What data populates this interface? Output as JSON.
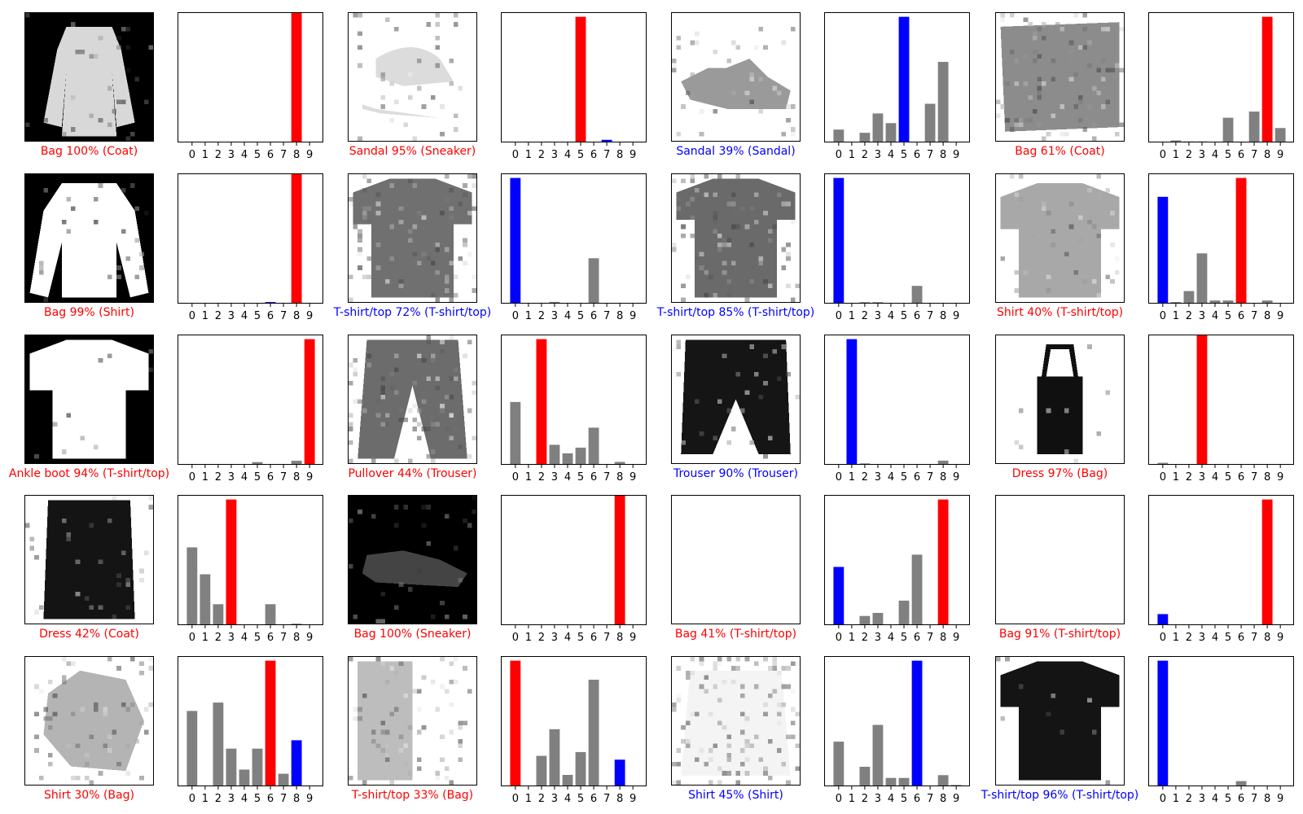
{
  "colors": {
    "predicted_wrong": "#ff0000",
    "true_label": "#0000ff",
    "other": "#808080",
    "correct_caption": "#0000ff",
    "wrong_caption": "#ff0000"
  },
  "chart_data": {
    "type": "bar",
    "categories": [
      "0",
      "1",
      "2",
      "3",
      "4",
      "5",
      "6",
      "7",
      "8",
      "9"
    ],
    "ylim": [
      0,
      1
    ],
    "grid": false,
    "panels": [
      {
        "image": "coat-image",
        "caption": "Bag 100% (Coat)",
        "correct": false,
        "predicted": 8,
        "true": 4,
        "values": [
          0,
          0,
          0,
          0,
          0,
          0,
          0,
          0,
          1.0,
          0
        ]
      },
      {
        "image": "sneaker-image",
        "caption": "Sandal 95% (Sneaker)",
        "correct": false,
        "predicted": 5,
        "true": 7,
        "values": [
          0.005,
          0,
          0.003,
          0,
          0,
          0.955,
          0,
          0.02,
          0,
          0
        ]
      },
      {
        "image": "sandal-image",
        "caption": "Sandal 39% (Sandal)",
        "correct": true,
        "predicted": 5,
        "true": 5,
        "values": [
          0.04,
          0,
          0.03,
          0.09,
          0.06,
          0.39,
          0,
          0.12,
          0.25,
          0
        ]
      },
      {
        "image": "coat-texture-image",
        "caption": "Bag 61% (Coat)",
        "correct": false,
        "predicted": 8,
        "true": 4,
        "values": [
          0,
          0.01,
          0.005,
          0.005,
          0,
          0.12,
          0,
          0.15,
          0.61,
          0.07
        ]
      },
      {
        "image": "shirt-image",
        "caption": "Bag 99% (Shirt)",
        "correct": false,
        "predicted": 8,
        "true": 6,
        "values": [
          0,
          0,
          0,
          0,
          0,
          0,
          0.012,
          0,
          0.99,
          0
        ]
      },
      {
        "image": "tshirt-image",
        "caption": "T-shirt/top 72% (T-shirt/top)",
        "correct": true,
        "predicted": 0,
        "true": 0,
        "values": [
          0.72,
          0,
          0.005,
          0.01,
          0,
          0,
          0.26,
          0,
          0,
          0
        ]
      },
      {
        "image": "tshirt-image-2",
        "caption": "T-shirt/top 85% (T-shirt/top)",
        "correct": true,
        "predicted": 0,
        "true": 0,
        "values": [
          0.85,
          0,
          0.01,
          0.01,
          0,
          0,
          0.12,
          0,
          0,
          0
        ]
      },
      {
        "image": "tshirt-print-image",
        "caption": "Shirt 40% (T-shirt/top)",
        "correct": false,
        "predicted": 6,
        "true": 0,
        "values": [
          0.34,
          0.005,
          0.04,
          0.16,
          0.01,
          0.01,
          0.4,
          0,
          0.01,
          0
        ]
      },
      {
        "image": "tshirt-white-image",
        "caption": "Ankle boot 94% (T-shirt/top)",
        "correct": false,
        "predicted": 9,
        "true": 0,
        "values": [
          0,
          0,
          0,
          0,
          0,
          0.02,
          0,
          0,
          0.03,
          0.94
        ]
      },
      {
        "image": "trouser-image",
        "caption": "Pullover 44% (Trouser)",
        "correct": false,
        "predicted": 2,
        "true": 1,
        "values": [
          0.22,
          0,
          0.44,
          0.07,
          0.04,
          0.06,
          0.13,
          0,
          0.01,
          0
        ]
      },
      {
        "image": "trouser-dark-image",
        "caption": "Trouser 90% (Trouser)",
        "correct": true,
        "predicted": 1,
        "true": 1,
        "values": [
          0.005,
          0.9,
          0.01,
          0.005,
          0.005,
          0,
          0.005,
          0,
          0.03,
          0
        ]
      },
      {
        "image": "bag-image",
        "caption": "Dress 97% (Bag)",
        "correct": false,
        "predicted": 3,
        "true": 8,
        "values": [
          0.015,
          0,
          0,
          0.975,
          0,
          0,
          0,
          0,
          0,
          0
        ]
      },
      {
        "image": "coat-dark-image",
        "caption": "Dress 42% (Coat)",
        "correct": false,
        "predicted": 3,
        "true": 4,
        "values": [
          0.26,
          0.17,
          0.07,
          0.42,
          0,
          0,
          0.07,
          0,
          0.005,
          0
        ]
      },
      {
        "image": "sneaker-dark-image",
        "caption": "Bag 100% (Sneaker)",
        "correct": false,
        "predicted": 8,
        "true": 7,
        "values": [
          0,
          0,
          0,
          0,
          0,
          0,
          0,
          0,
          1.0,
          0
        ]
      },
      {
        "image": "tshirt-inverted-image",
        "caption": "Bag 41% (T-shirt/top)",
        "correct": false,
        "predicted": 8,
        "true": 0,
        "values": [
          0.19,
          0,
          0.03,
          0.04,
          0,
          0.08,
          0.23,
          0,
          0.41,
          0
        ]
      },
      {
        "image": "tshirt-inverted-image-2",
        "caption": "Bag 91% (T-shirt/top)",
        "correct": false,
        "predicted": 8,
        "true": 0,
        "values": [
          0.08,
          0,
          0,
          0,
          0,
          0,
          0,
          0,
          0.91,
          0
        ]
      },
      {
        "image": "bag-light-image",
        "caption": "Shirt 30% (Bag)",
        "correct": false,
        "predicted": 6,
        "true": 8,
        "values": [
          0.18,
          0,
          0.2,
          0.09,
          0.04,
          0.09,
          0.3,
          0.03,
          0.11,
          0
        ]
      },
      {
        "image": "bag-sketch-image",
        "caption": "T-shirt/top 33% (Bag)",
        "correct": false,
        "predicted": 0,
        "true": 8,
        "values": [
          0.33,
          0,
          0.08,
          0.15,
          0.03,
          0.09,
          0.28,
          0,
          0.07,
          0
        ]
      },
      {
        "image": "shirt-pattern-image",
        "caption": "Shirt 45% (Shirt)",
        "correct": true,
        "predicted": 6,
        "true": 6,
        "values": [
          0.16,
          0,
          0.07,
          0.22,
          0.03,
          0.03,
          0.45,
          0,
          0.04,
          0.005
        ]
      },
      {
        "image": "tshirt-black-image",
        "caption": "T-shirt/top 96% (T-shirt/top)",
        "correct": true,
        "predicted": 0,
        "true": 0,
        "values": [
          0.965,
          0,
          0,
          0,
          0,
          0,
          0.04,
          0,
          0,
          0
        ]
      }
    ]
  }
}
